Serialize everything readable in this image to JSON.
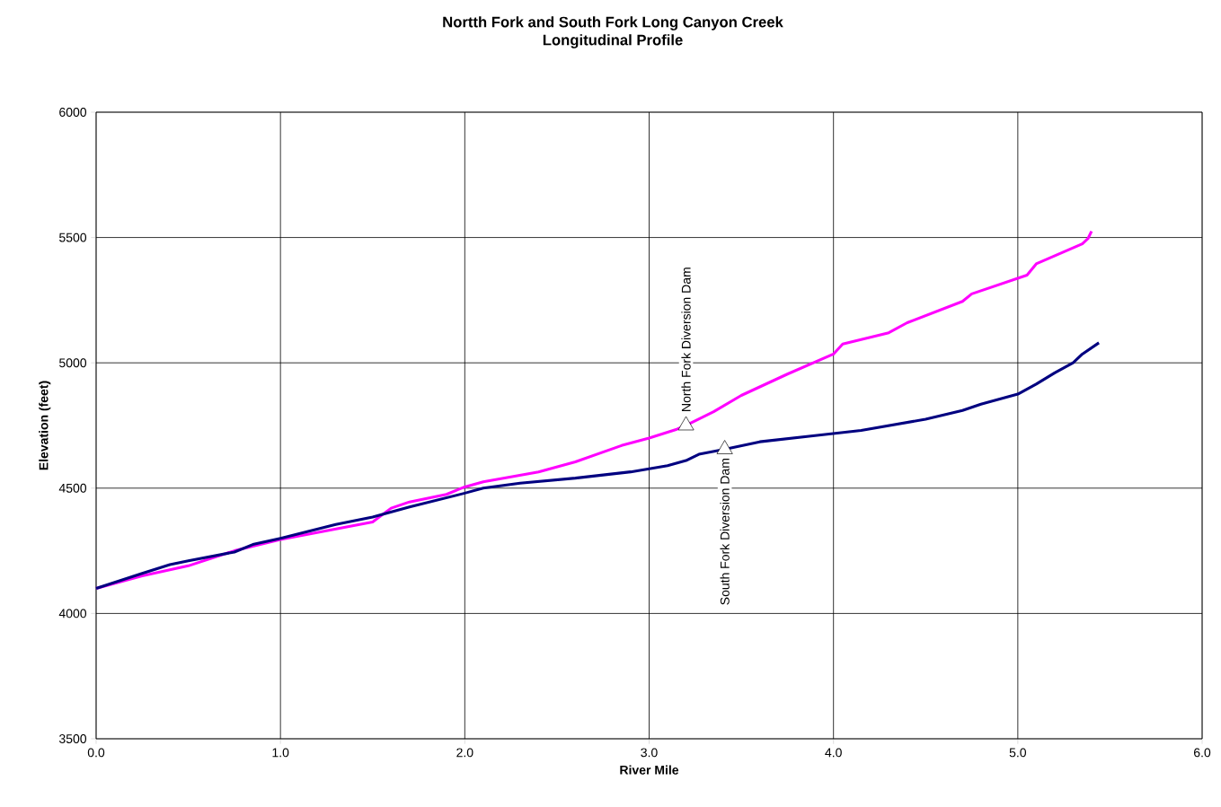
{
  "chart_data": {
    "type": "line",
    "title": "Nortth Fork and South Fork Long Canyon Creek",
    "subtitle": "Longitudinal Profile",
    "xlabel": "River Mile",
    "ylabel": "Elevation (feet)",
    "xlim": [
      0,
      6
    ],
    "ylim": [
      3500,
      6000
    ],
    "xticks": [
      {
        "value": 0,
        "label": "0.0"
      },
      {
        "value": 1,
        "label": "1.0"
      },
      {
        "value": 2,
        "label": "2.0"
      },
      {
        "value": 3,
        "label": "3.0"
      },
      {
        "value": 4,
        "label": "4.0"
      },
      {
        "value": 5,
        "label": "5.0"
      },
      {
        "value": 6,
        "label": "6.0"
      }
    ],
    "yticks": [
      3500,
      4000,
      4500,
      5000,
      5500,
      6000
    ],
    "grid": true,
    "marker": "none",
    "line_style": "solid",
    "series": [
      {
        "color": "#ff00ff",
        "x": [
          0,
          0.25,
          0.5,
          0.75,
          1.0,
          1.25,
          1.5,
          1.6,
          1.7,
          1.9,
          2.0,
          2.1,
          2.4,
          2.6,
          2.85,
          3.0,
          3.15,
          3.2,
          3.35,
          3.5,
          3.75,
          4.0,
          4.05,
          4.3,
          4.4,
          4.7,
          4.75,
          5.05,
          5.1,
          5.35,
          5.38,
          5.4
        ],
        "values": [
          4100,
          4150,
          4190,
          4250,
          4295,
          4330,
          4365,
          4420,
          4445,
          4475,
          4505,
          4525,
          4565,
          4605,
          4670,
          4700,
          4735,
          4750,
          4805,
          4870,
          4955,
          5035,
          5075,
          5120,
          5160,
          5245,
          5275,
          5350,
          5395,
          5475,
          5495,
          5525
        ]
      },
      {
        "color": "#000080",
        "x": [
          0,
          0.25,
          0.4,
          0.5,
          0.75,
          0.85,
          1.0,
          1.3,
          1.5,
          1.7,
          2.0,
          2.1,
          2.3,
          2.6,
          2.9,
          3.1,
          3.2,
          3.27,
          3.41,
          3.6,
          3.9,
          4.15,
          4.5,
          4.7,
          4.8,
          5.0,
          5.1,
          5.2,
          5.3,
          5.35,
          5.44
        ],
        "values": [
          4100,
          4160,
          4195,
          4210,
          4245,
          4275,
          4300,
          4355,
          4385,
          4425,
          4480,
          4500,
          4520,
          4540,
          4565,
          4590,
          4610,
          4635,
          4655,
          4685,
          4710,
          4730,
          4775,
          4810,
          4835,
          4875,
          4915,
          4960,
          5000,
          5035,
          5080
        ]
      }
    ],
    "annotations": [
      {
        "text": "North Fork Diversion Dam",
        "x": 3.2,
        "y": 4750
      },
      {
        "text": "South Fork Diversion Dam",
        "x": 3.41,
        "y": 4655
      }
    ]
  }
}
